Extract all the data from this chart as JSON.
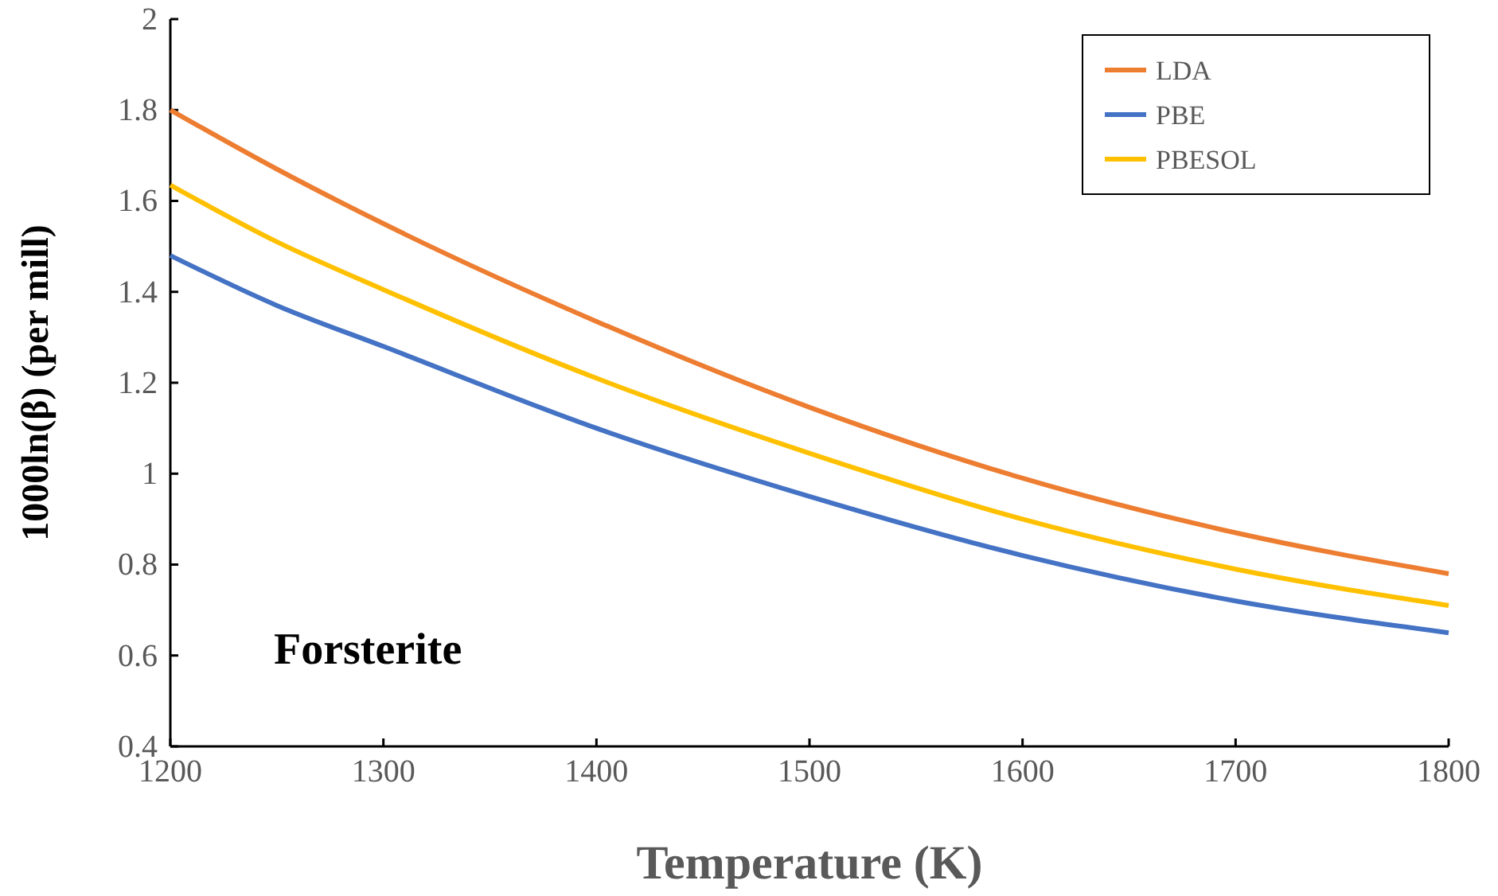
{
  "chart_data": {
    "type": "line",
    "xlabel": "Temperature  (K)",
    "ylabel": "1000ln(β) (per mill)",
    "x": [
      1200,
      1250,
      1300,
      1400,
      1500,
      1600,
      1700,
      1800
    ],
    "series": [
      {
        "name": "LDA",
        "color": "#ed7d31",
        "values": [
          1.8,
          1.67,
          1.55,
          1.335,
          1.146,
          0.99,
          0.87,
          0.78
        ]
      },
      {
        "name": "PBE",
        "color": "#4472c4",
        "values": [
          1.48,
          1.37,
          1.28,
          1.1,
          0.95,
          0.82,
          0.72,
          0.65
        ]
      },
      {
        "name": "PBESOL",
        "color": "#ffc000",
        "values": [
          1.635,
          1.51,
          1.405,
          1.21,
          1.045,
          0.9,
          0.79,
          0.71
        ]
      }
    ],
    "xlim": [
      1200,
      1800
    ],
    "xticks": [
      1200,
      1300,
      1400,
      1500,
      1600,
      1700,
      1800
    ],
    "ylim": [
      0.4,
      2
    ],
    "yticks": [
      0.4,
      0.6,
      0.8,
      1,
      1.2,
      1.4,
      1.6,
      1.8,
      2
    ],
    "annotations": [
      "Forsterite"
    ],
    "grid": false,
    "legend": "top right",
    "marker": "none",
    "line_style": "solid"
  }
}
